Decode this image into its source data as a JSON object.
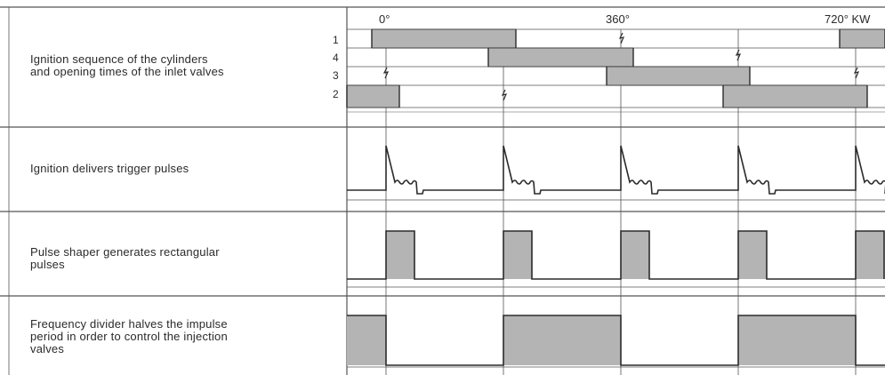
{
  "axis": {
    "marks": [
      "0°",
      "360°",
      "720° KW"
    ]
  },
  "rows": [
    {
      "lines": [
        "Ignition sequence of the cylinders",
        "and opening times of the inlet valves"
      ],
      "cylinders": [
        "1",
        "4",
        "3",
        "2"
      ]
    },
    {
      "lines": [
        "Ignition delivers trigger pulses"
      ]
    },
    {
      "lines": [
        "Pulse shaper generates rectangular",
        "pulses"
      ]
    },
    {
      "lines": [
        "Frequency divider halves the impulse",
        "period in order to control the injection",
        "valves"
      ]
    }
  ],
  "colors": {
    "fill": "#b4b4b4",
    "line": "#2b2b2b",
    "grid": "#555555"
  }
}
